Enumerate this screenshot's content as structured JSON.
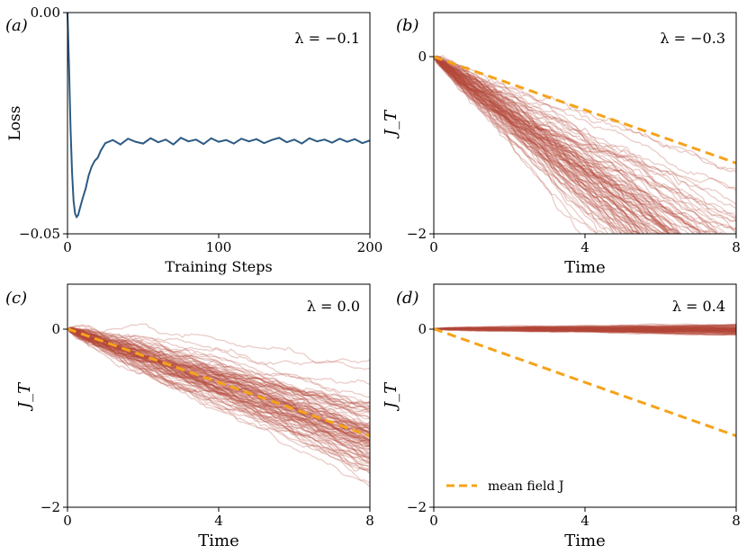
{
  "colors": {
    "loss_line": "#2c5a83",
    "trajectory": "#b5493b",
    "mean_field": "#f5a31a",
    "axis": "#000000"
  },
  "chart_data": [
    {
      "id": "a",
      "type": "line",
      "panel_label": "(a)",
      "annotation": "λ = −0.1",
      "xlabel": "Training Steps",
      "ylabel": "Loss",
      "xlim": [
        0,
        200
      ],
      "ylim": [
        -0.05,
        0.0
      ],
      "xticks": [
        0,
        100,
        200
      ],
      "xtick_labels": [
        "0",
        "100",
        "200"
      ],
      "yticks": [
        -0.05,
        0.0
      ],
      "ytick_labels": [
        "−0.05",
        "0.00"
      ],
      "series": [
        {
          "name": "loss",
          "x": [
            0,
            1,
            2,
            3,
            4,
            5,
            6,
            7,
            8,
            10,
            12,
            14,
            16,
            18,
            20,
            22,
            25,
            30,
            35,
            40,
            45,
            50,
            55,
            60,
            65,
            70,
            75,
            80,
            85,
            90,
            95,
            100,
            105,
            110,
            115,
            120,
            125,
            130,
            135,
            140,
            145,
            150,
            155,
            160,
            165,
            170,
            175,
            180,
            185,
            190,
            195,
            200
          ],
          "y": [
            0.0,
            -0.012,
            -0.026,
            -0.036,
            -0.0425,
            -0.0454,
            -0.0462,
            -0.0458,
            -0.0445,
            -0.042,
            -0.0398,
            -0.0368,
            -0.0348,
            -0.0335,
            -0.0328,
            -0.0312,
            -0.0295,
            -0.0288,
            -0.0298,
            -0.0285,
            -0.0292,
            -0.0296,
            -0.0284,
            -0.0293,
            -0.0287,
            -0.0298,
            -0.0283,
            -0.0291,
            -0.0287,
            -0.0297,
            -0.0284,
            -0.0292,
            -0.0288,
            -0.0296,
            -0.0285,
            -0.0291,
            -0.0286,
            -0.0295,
            -0.0288,
            -0.0283,
            -0.0293,
            -0.0287,
            -0.0296,
            -0.0284,
            -0.0291,
            -0.0287,
            -0.0294,
            -0.0285,
            -0.0292,
            -0.0286,
            -0.0295,
            -0.0289
          ]
        }
      ]
    },
    {
      "id": "b",
      "type": "line",
      "panel_label": "(b)",
      "annotation": "λ = −0.3",
      "xlabel": "Time",
      "ylabel": "J_T",
      "xlim": [
        0,
        8
      ],
      "ylim": [
        -2,
        0.5
      ],
      "xticks": [
        0,
        4,
        8
      ],
      "xtick_labels": [
        "0",
        "4",
        "8"
      ],
      "yticks": [
        -2,
        0
      ],
      "ytick_labels": [
        "−2",
        "0"
      ],
      "mean_field": {
        "name": "mean field J",
        "x": [
          0,
          8
        ],
        "y": [
          0,
          -1.2
        ]
      },
      "trajectories": {
        "count": 100,
        "mean_slope": -0.32,
        "slope_spread": 0.07,
        "noise": 0.045
      }
    },
    {
      "id": "c",
      "type": "line",
      "panel_label": "(c)",
      "annotation": "λ = 0.0",
      "xlabel": "Time",
      "ylabel": "J_T",
      "xlim": [
        0,
        8
      ],
      "ylim": [
        -2,
        0.5
      ],
      "xticks": [
        0,
        4,
        8
      ],
      "xtick_labels": [
        "0",
        "4",
        "8"
      ],
      "yticks": [
        -2,
        0
      ],
      "ytick_labels": [
        "−2",
        "0"
      ],
      "mean_field": {
        "name": "mean field J",
        "x": [
          0,
          8
        ],
        "y": [
          0,
          -1.2
        ]
      },
      "trajectories": {
        "count": 100,
        "mean_slope": -0.15,
        "slope_spread": 0.025,
        "noise": 0.035
      }
    },
    {
      "id": "d",
      "type": "line",
      "panel_label": "(d)",
      "annotation": "λ = 0.4",
      "xlabel": "Time",
      "ylabel": "J_T",
      "xlim": [
        0,
        8
      ],
      "ylim": [
        -2,
        0.5
      ],
      "xticks": [
        0,
        4,
        8
      ],
      "xtick_labels": [
        "0",
        "4",
        "8"
      ],
      "yticks": [
        -2,
        0
      ],
      "ytick_labels": [
        "−2",
        "0"
      ],
      "mean_field": {
        "name": "mean field J",
        "x": [
          0,
          8
        ],
        "y": [
          0,
          -1.2
        ]
      },
      "trajectories": {
        "count": 100,
        "mean_slope": -0.002,
        "slope_spread": 0.0015,
        "noise": 0.006
      },
      "legend": {
        "label": "mean field J",
        "placement": "bottom-left"
      }
    }
  ]
}
